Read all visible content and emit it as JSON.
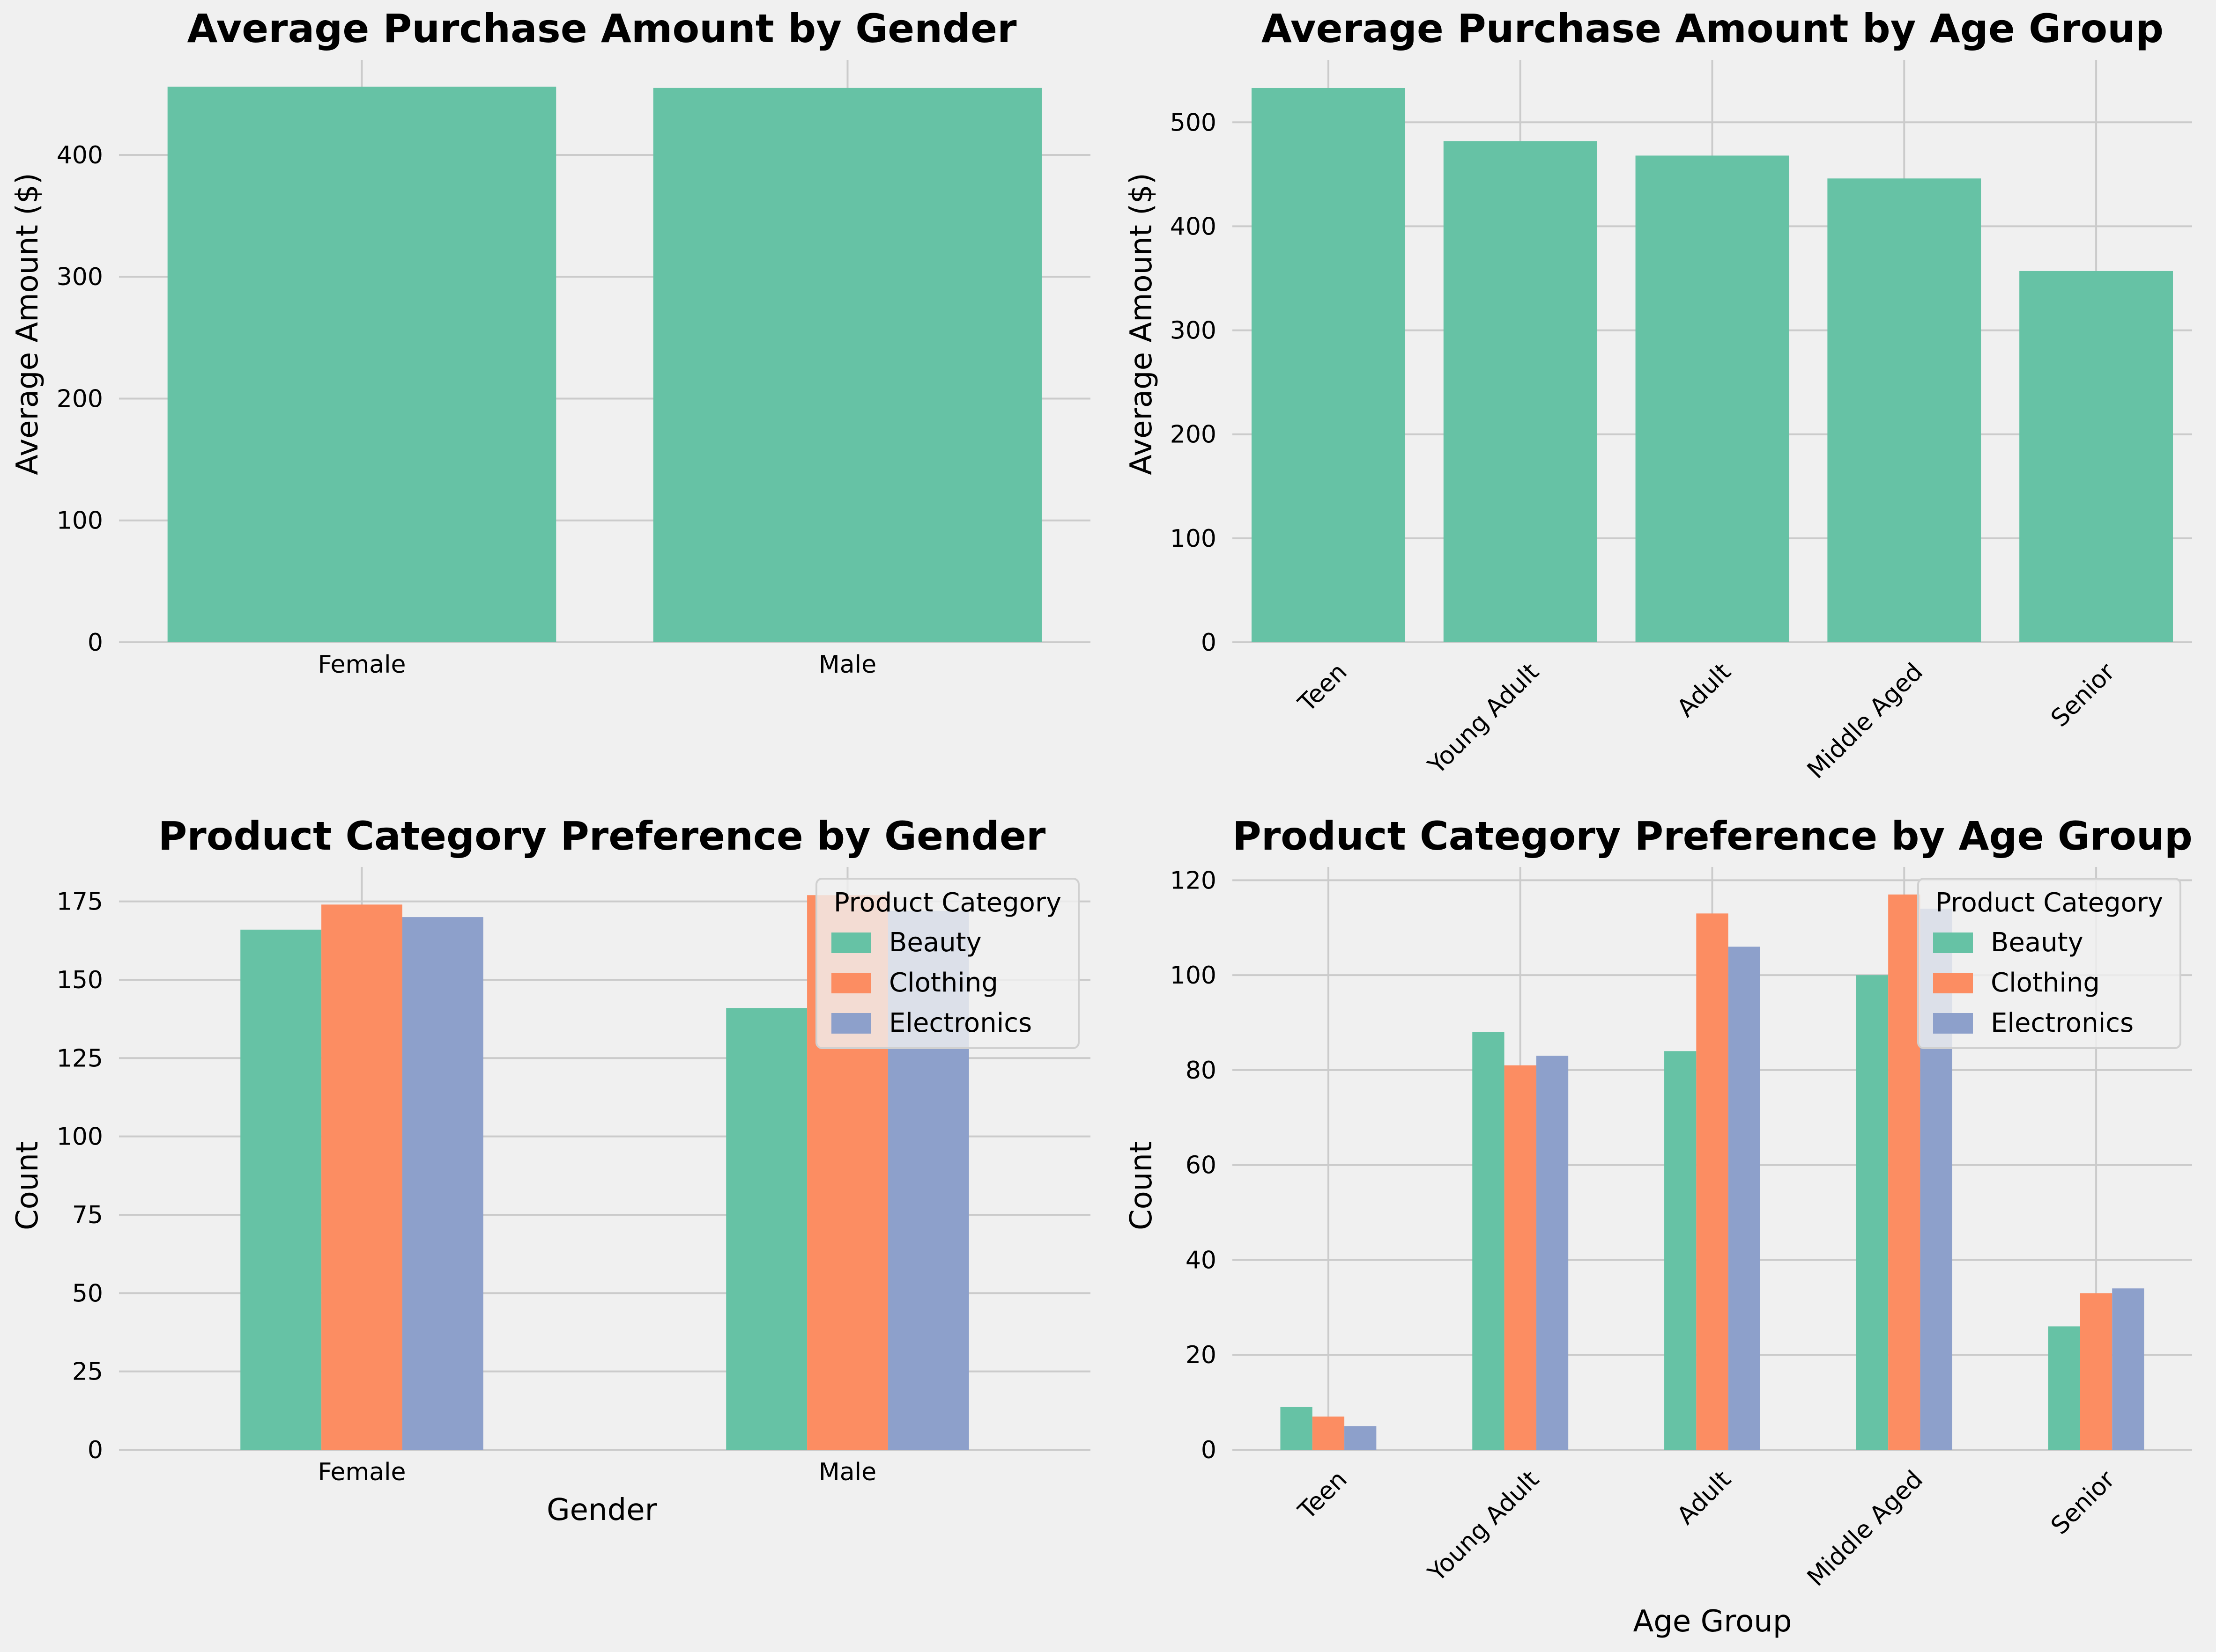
{
  "colors": {
    "background": "#f0f0f0",
    "grid": "#cbcbcb",
    "beauty": "#66c2a5",
    "clothing": "#fc8d62",
    "electronics": "#8da0cb"
  },
  "chart_data": [
    {
      "type": "bar",
      "title": "Average Purchase Amount by Gender",
      "xlabel": "",
      "ylabel": "Average Amount ($)",
      "categories": [
        "Female",
        "Male"
      ],
      "values": [
        456,
        455
      ],
      "ylim": [
        0,
        478
      ],
      "yticks": [
        0,
        100,
        200,
        300,
        400
      ],
      "grid": true,
      "color": "#66c2a5"
    },
    {
      "type": "bar",
      "title": "Average Purchase Amount by Age Group",
      "xlabel": "",
      "ylabel": "Average Amount ($)",
      "categories": [
        "Teen",
        "Young Adult",
        "Adult",
        "Middle Aged",
        "Senior"
      ],
      "values": [
        533,
        482,
        468,
        446,
        357
      ],
      "ylim": [
        0,
        560
      ],
      "yticks": [
        0,
        100,
        200,
        300,
        400,
        500
      ],
      "grid": true,
      "color": "#66c2a5"
    },
    {
      "type": "bar",
      "title": "Product Category Preference by Gender",
      "xlabel": "Gender",
      "ylabel": "Count",
      "categories": [
        "Female",
        "Male"
      ],
      "series": [
        {
          "name": "Beauty",
          "values": [
            166,
            141
          ],
          "color": "#66c2a5"
        },
        {
          "name": "Clothing",
          "values": [
            174,
            177
          ],
          "color": "#fc8d62"
        },
        {
          "name": "Electronics",
          "values": [
            170,
            172
          ],
          "color": "#8da0cb"
        }
      ],
      "ylim": [
        0,
        186
      ],
      "yticks": [
        0,
        25,
        50,
        75,
        100,
        125,
        150,
        175
      ],
      "legend_title": "Product Category",
      "legend_position": "top-right",
      "grid": true
    },
    {
      "type": "bar",
      "title": "Product Category Preference by Age Group",
      "xlabel": "Age Group",
      "ylabel": "Count",
      "categories": [
        "Teen",
        "Young Adult",
        "Adult",
        "Middle Aged",
        "Senior"
      ],
      "series": [
        {
          "name": "Beauty",
          "values": [
            9,
            88,
            84,
            100,
            26
          ],
          "color": "#66c2a5"
        },
        {
          "name": "Clothing",
          "values": [
            7,
            81,
            113,
            117,
            33
          ],
          "color": "#fc8d62"
        },
        {
          "name": "Electronics",
          "values": [
            5,
            83,
            106,
            114,
            34
          ],
          "color": "#8da0cb"
        }
      ],
      "ylim": [
        0,
        122.8
      ],
      "yticks": [
        0,
        20,
        40,
        60,
        80,
        100,
        120
      ],
      "legend_title": "Product Category",
      "legend_position": "top-right",
      "grid": true
    }
  ]
}
